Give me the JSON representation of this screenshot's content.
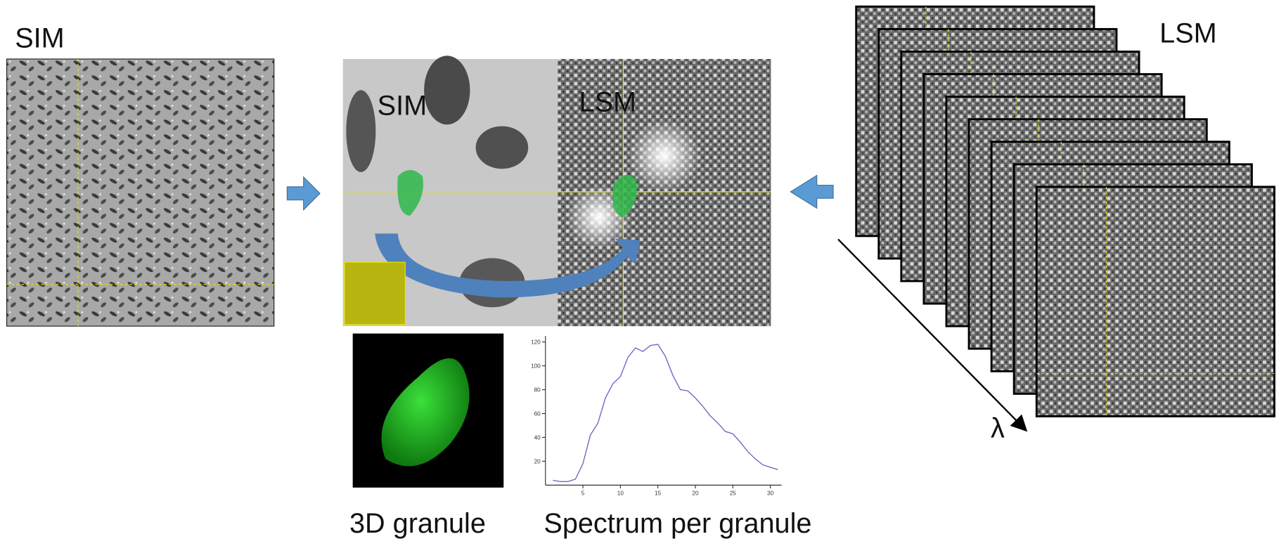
{
  "labels": {
    "sim_left": "SIM",
    "lsm_right": "LSM",
    "sim_overlay": "SIM",
    "lsm_overlay": "LSM",
    "lambda": "λ",
    "granule_caption": "3D granule",
    "spectrum_caption": "Spectrum per granule"
  },
  "chart_data": {
    "type": "line",
    "x": [
      1,
      2,
      3,
      4,
      5,
      6,
      7,
      8,
      9,
      10,
      11,
      12,
      13,
      14,
      15,
      16,
      17,
      18,
      19,
      20,
      21,
      22,
      23,
      24,
      25,
      26,
      27,
      28,
      29,
      30,
      31
    ],
    "series": [
      {
        "color": "#6b6bc8",
        "values": [
          4,
          3,
          3,
          5,
          18,
          42,
          52,
          73,
          85,
          91,
          107,
          115,
          112,
          117,
          118,
          108,
          92,
          80,
          79,
          73,
          66,
          58,
          52,
          45,
          43,
          36,
          28,
          22,
          17,
          15,
          13
        ]
      }
    ],
    "xlim": [
      0,
      31.5
    ],
    "ylim": [
      0,
      125
    ],
    "xticks": [
      5,
      10,
      15,
      20,
      25,
      30
    ],
    "yticks": [
      20,
      40,
      60,
      80,
      100,
      120
    ]
  }
}
